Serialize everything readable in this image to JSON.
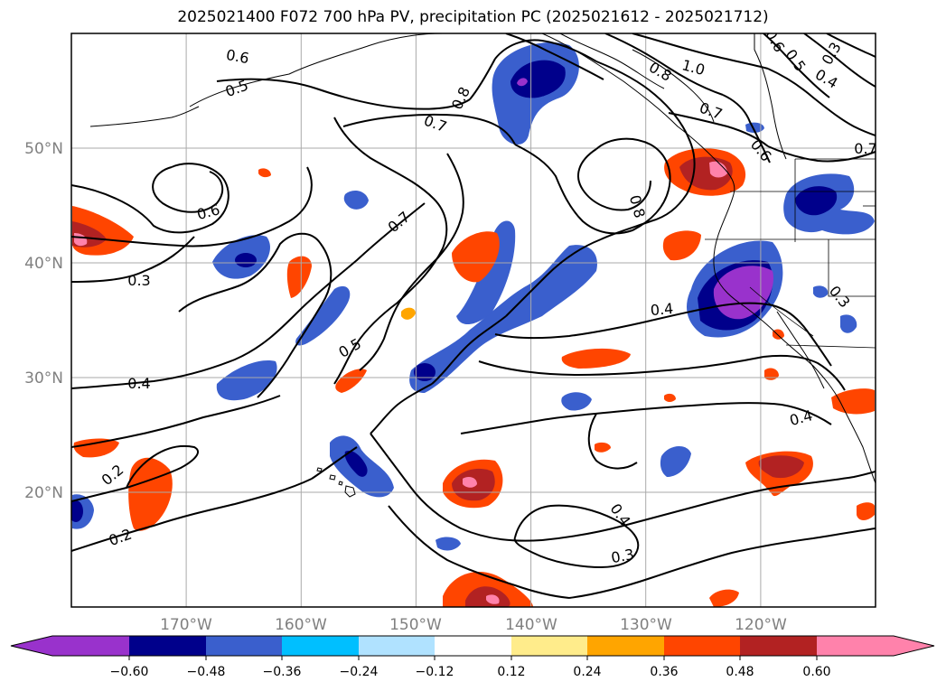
{
  "title": "2025021400 F072 700 hPa PV, precipitation PC (2025021612 - 2025021712)",
  "map": {
    "lon_range": [
      -180,
      -110
    ],
    "lat_range": [
      10,
      60
    ],
    "lon_ticks": [
      "170°W",
      "160°W",
      "150°W",
      "140°W",
      "130°W",
      "120°W"
    ],
    "lat_ticks": [
      "20°N",
      "30°N",
      "40°N",
      "50°N"
    ],
    "gridlines": true,
    "contour_field": "700 hPa PV",
    "contour_labels": [
      "0.6",
      "0.5",
      "0.6",
      "0.3",
      "0.4",
      "0.2",
      "0.2",
      "0.7",
      "0.8",
      "0.7",
      "0.5",
      "0.8",
      "0.8",
      "1.0",
      "0.7",
      "0.6",
      "0.6",
      "0.5",
      "0.3",
      "0.4",
      "0.7",
      "0.4",
      "0.3",
      "0.4",
      "0.4",
      "0.3"
    ],
    "shaded_field": "precipitation PC"
  },
  "colorbar": {
    "ticks": [
      "−0.60",
      "−0.48",
      "−0.36",
      "−0.24",
      "−0.12",
      "0.12",
      "0.24",
      "0.36",
      "0.48",
      "0.60"
    ],
    "colors": [
      "#9932cc",
      "#00008b",
      "#3a5fcd",
      "#00bfff",
      "#b0e2ff",
      "#ffffff",
      "#ffec8b",
      "#ffa500",
      "#ff4500",
      "#b22222",
      "#ff82ab"
    ],
    "extend": "both"
  }
}
